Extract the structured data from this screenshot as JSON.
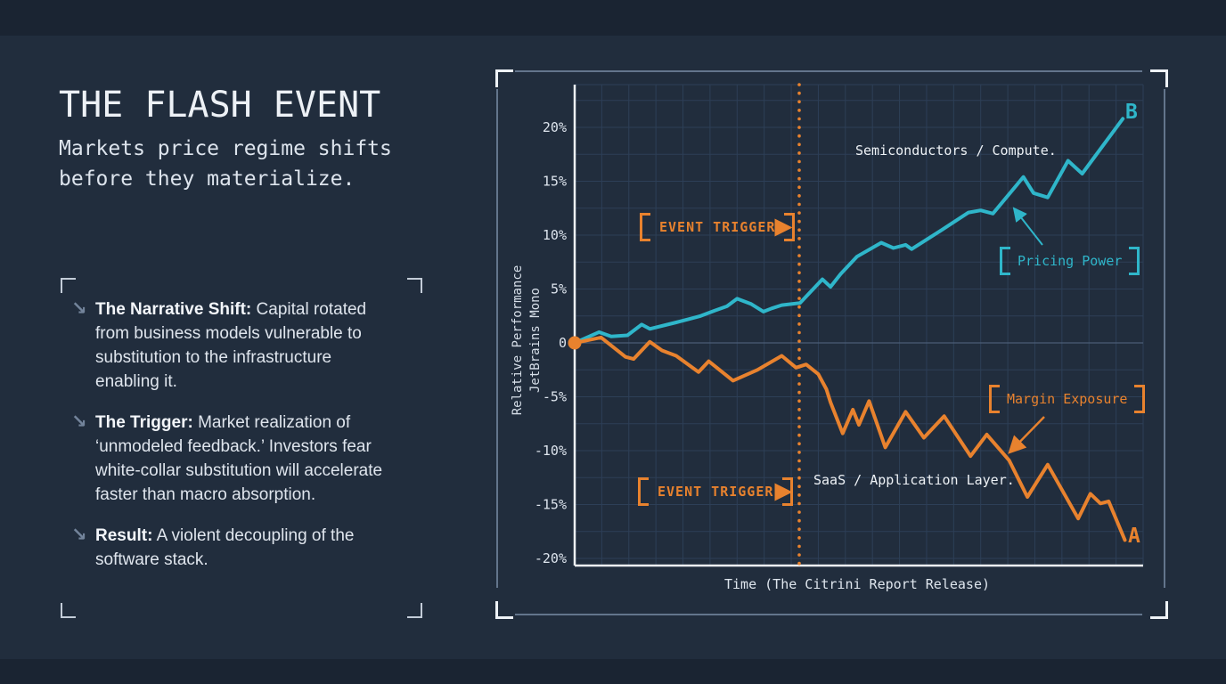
{
  "slide": {
    "title": "THE FLASH EVENT",
    "subtitle": "Markets price regime shifts before they materialize.",
    "bullet_icon": "↘",
    "bullets": [
      {
        "lead": "The Narrative Shift:",
        "text": "Capital rotated from business models vulnerable to substitution to the infrastructure enabling it."
      },
      {
        "lead": "The Trigger:",
        "text": "Market realization of ‘unmodeled feedback.’ Investors fear white-collar substitution will accelerate faster than macro absorption."
      },
      {
        "lead": "Result:",
        "text": "A violent decoupling of the software stack."
      }
    ]
  },
  "chart_data": {
    "type": "line",
    "title": "",
    "xlabel": "Time (The Citrini Report Release)",
    "ylabel_lines": [
      "Relative Performance",
      "JetBrains Mono"
    ],
    "x_range": [
      0,
      28
    ],
    "ylim": [
      -21,
      24
    ],
    "grid": true,
    "yticks": [
      20,
      15,
      10,
      5,
      0,
      -5,
      -10,
      -15,
      -20
    ],
    "ytick_labels": [
      "20%",
      "15%",
      "10%",
      "5%",
      "0",
      "-5%",
      "-10%",
      "-15%",
      "-20%"
    ],
    "trigger_t": 11.06,
    "series": [
      {
        "name": "Semiconductors / Compute.",
        "endpoint_label": "B",
        "color": "#2fb6ca",
        "points": [
          [
            0,
            0
          ],
          [
            1.2,
            1.0
          ],
          [
            1.8,
            0.6
          ],
          [
            2.6,
            0.7
          ],
          [
            3.3,
            1.7
          ],
          [
            3.7,
            1.3
          ],
          [
            5.0,
            1.9
          ],
          [
            5.6,
            2.2
          ],
          [
            6.2,
            2.5
          ],
          [
            6.9,
            3.0
          ],
          [
            7.5,
            3.4
          ],
          [
            8.0,
            4.1
          ],
          [
            8.7,
            3.6
          ],
          [
            9.3,
            2.9
          ],
          [
            9.7,
            3.2
          ],
          [
            10.2,
            3.5
          ],
          [
            11.1,
            3.7
          ],
          [
            11.6,
            4.7
          ],
          [
            12.2,
            5.9
          ],
          [
            12.6,
            5.2
          ],
          [
            13.1,
            6.4
          ],
          [
            13.9,
            8.0
          ],
          [
            15.1,
            9.3
          ],
          [
            15.7,
            8.8
          ],
          [
            16.3,
            9.1
          ],
          [
            16.6,
            8.7
          ],
          [
            18.1,
            10.5
          ],
          [
            19.4,
            12.1
          ],
          [
            20.0,
            12.3
          ],
          [
            20.6,
            12.0
          ],
          [
            22.1,
            15.4
          ],
          [
            22.6,
            13.9
          ],
          [
            23.3,
            13.5
          ],
          [
            24.3,
            16.9
          ],
          [
            25.0,
            15.7
          ],
          [
            27.0,
            20.8
          ]
        ]
      },
      {
        "name": "SaaS / Application Layer.",
        "endpoint_label": "A",
        "color": "#e8822e",
        "points": [
          [
            0,
            0
          ],
          [
            1.3,
            0.5
          ],
          [
            2.5,
            -1.3
          ],
          [
            2.9,
            -1.5
          ],
          [
            3.7,
            0.1
          ],
          [
            4.3,
            -0.7
          ],
          [
            5.0,
            -1.2
          ],
          [
            6.1,
            -2.7
          ],
          [
            6.6,
            -1.7
          ],
          [
            7.8,
            -3.5
          ],
          [
            9.0,
            -2.5
          ],
          [
            10.2,
            -1.2
          ],
          [
            10.9,
            -2.3
          ],
          [
            11.4,
            -2.0
          ],
          [
            12.0,
            -2.9
          ],
          [
            12.4,
            -4.3
          ],
          [
            12.6,
            -5.5
          ],
          [
            13.2,
            -8.4
          ],
          [
            13.7,
            -6.2
          ],
          [
            14.0,
            -7.6
          ],
          [
            14.5,
            -5.4
          ],
          [
            15.3,
            -9.7
          ],
          [
            16.3,
            -6.4
          ],
          [
            17.2,
            -8.8
          ],
          [
            18.2,
            -6.8
          ],
          [
            19.5,
            -10.5
          ],
          [
            20.3,
            -8.5
          ],
          [
            21.4,
            -10.9
          ],
          [
            22.3,
            -14.3
          ],
          [
            23.3,
            -11.3
          ],
          [
            24.8,
            -16.3
          ],
          [
            25.4,
            -14.0
          ],
          [
            25.9,
            -14.9
          ],
          [
            26.3,
            -14.7
          ],
          [
            27.1,
            -18.3
          ]
        ]
      }
    ],
    "annotations": [
      {
        "text": "EVENT TRIGGER",
        "color": "#e8822e"
      },
      {
        "text": "EVENT TRIGGER",
        "color": "#e8822e"
      },
      {
        "text": "Pricing Power",
        "color": "#2fb6ca"
      },
      {
        "text": "Margin Exposure",
        "color": "#e8822e"
      }
    ],
    "colors": {
      "accent_teal": "#2fb6ca",
      "accent_orange": "#e8822e",
      "background": "#212d3d"
    }
  }
}
